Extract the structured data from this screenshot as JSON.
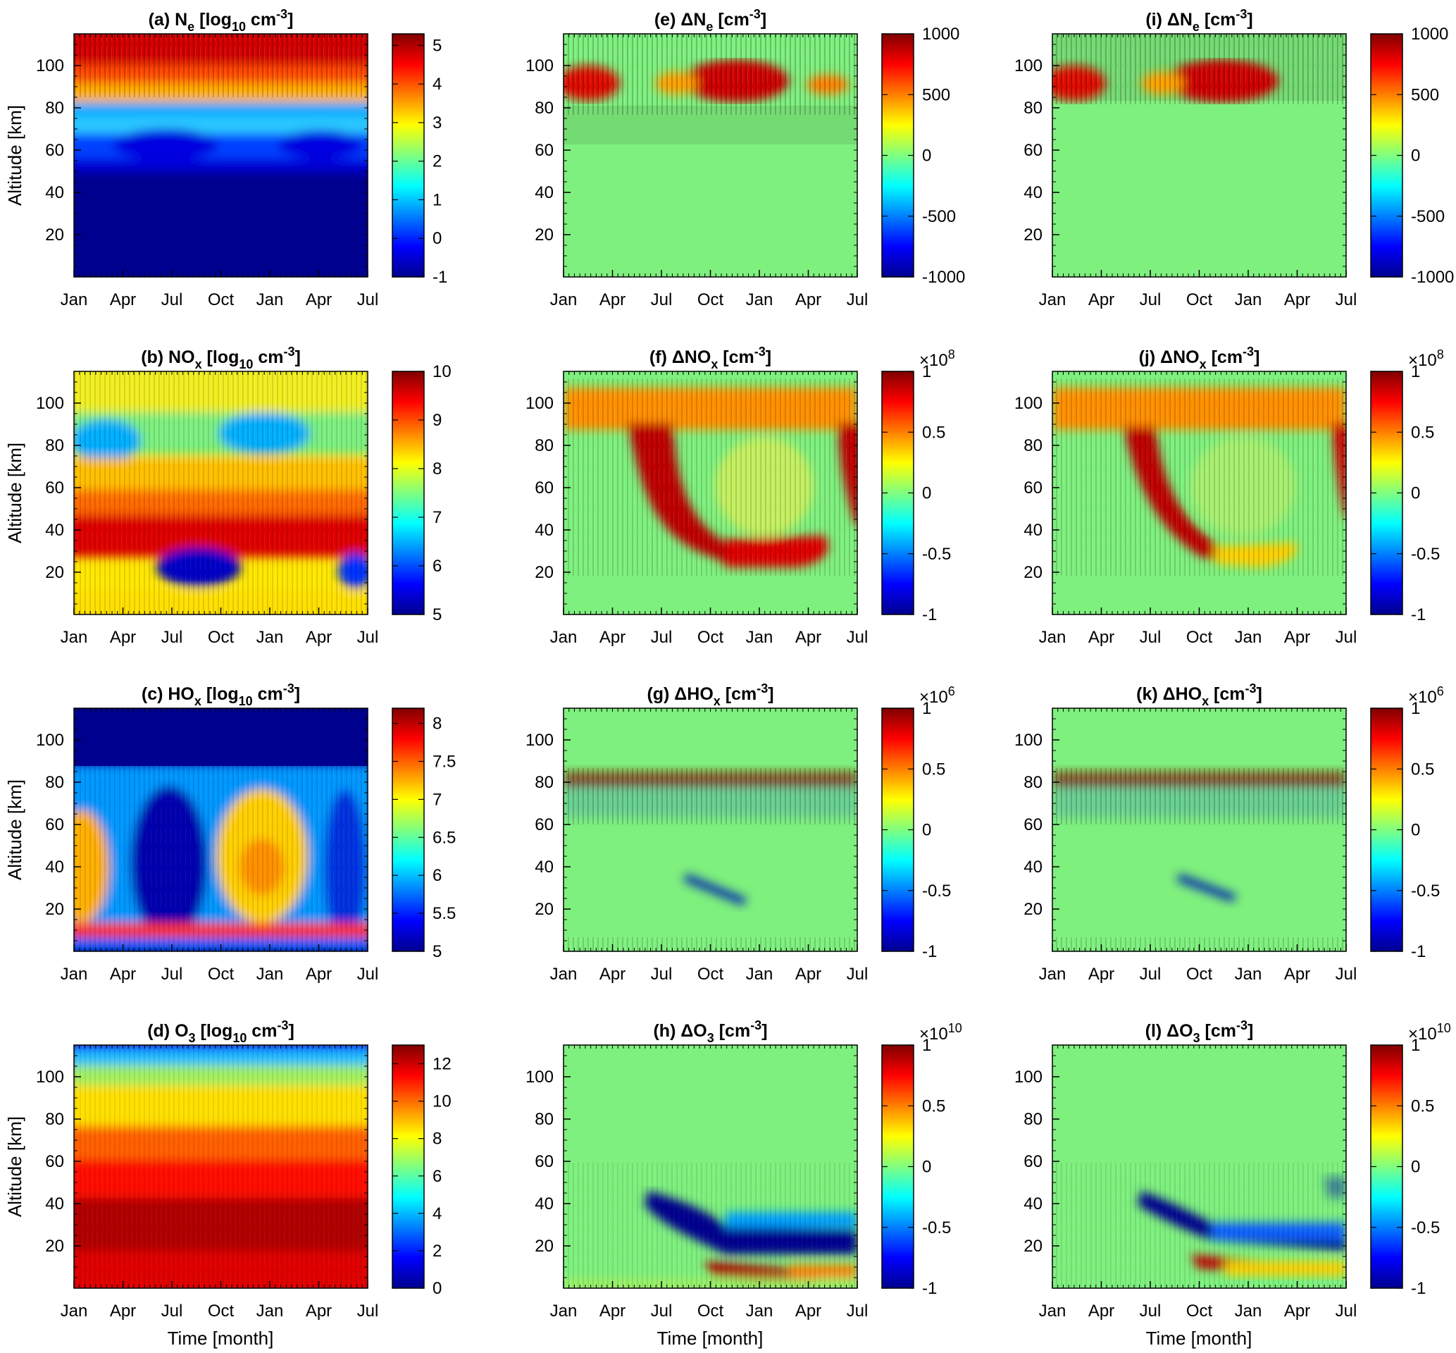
{
  "figure": {
    "x_label": "Time [month]",
    "y_label": "Altitude [km]"
  },
  "chart_data": [
    {
      "id": "a",
      "type": "heatmap",
      "title_prefix": "(a)",
      "species": "N",
      "species_sub": "e",
      "delta": false,
      "unit_pre": "[log",
      "unit_sub": "10",
      "unit_mid": " cm",
      "unit_sup": "-3",
      "unit_post": "]",
      "x_ticks": [
        "Jan",
        "Apr",
        "Jul",
        "Oct",
        "Jan",
        "Apr",
        "Jul"
      ],
      "y_ticks": [
        20,
        40,
        60,
        80,
        100
      ],
      "ylim": [
        0,
        115
      ],
      "colorbar_ticks": [
        "5",
        "4",
        "3",
        "2",
        "1",
        "0",
        "-1"
      ],
      "clim": [
        -1,
        5.3
      ],
      "colormap": "jet",
      "exponent": ""
    },
    {
      "id": "b",
      "type": "heatmap",
      "title_prefix": "(b)",
      "species": "NO",
      "species_sub": "x",
      "delta": false,
      "unit_pre": "[log",
      "unit_sub": "10",
      "unit_mid": " cm",
      "unit_sup": "-3",
      "unit_post": "]",
      "x_ticks": [
        "Jan",
        "Apr",
        "Jul",
        "Oct",
        "Jan",
        "Apr",
        "Jul"
      ],
      "y_ticks": [
        20,
        40,
        60,
        80,
        100
      ],
      "ylim": [
        0,
        115
      ],
      "colorbar_ticks": [
        "10",
        "9",
        "8",
        "7",
        "6",
        "5"
      ],
      "clim": [
        5,
        10
      ],
      "colormap": "jet",
      "exponent": ""
    },
    {
      "id": "c",
      "type": "heatmap",
      "title_prefix": "(c)",
      "species": "HO",
      "species_sub": "x",
      "delta": false,
      "unit_pre": "[log",
      "unit_sub": "10",
      "unit_mid": " cm",
      "unit_sup": "-3",
      "unit_post": "]",
      "x_ticks": [
        "Jan",
        "Apr",
        "Jul",
        "Oct",
        "Jan",
        "Apr",
        "Jul"
      ],
      "y_ticks": [
        20,
        40,
        60,
        80,
        100
      ],
      "ylim": [
        0,
        115
      ],
      "colorbar_ticks": [
        "8",
        "7.5",
        "7",
        "6.5",
        "6",
        "5.5",
        "5"
      ],
      "clim": [
        5,
        8.2
      ],
      "colormap": "jet",
      "exponent": ""
    },
    {
      "id": "d",
      "type": "heatmap",
      "title_prefix": "(d)",
      "species": "O",
      "species_sub": "3",
      "delta": false,
      "unit_pre": "[log",
      "unit_sub": "10",
      "unit_mid": " cm",
      "unit_sup": "-3",
      "unit_post": "]",
      "x_ticks": [
        "Jan",
        "Apr",
        "Jul",
        "Oct",
        "Jan",
        "Apr",
        "Jul"
      ],
      "y_ticks": [
        20,
        40,
        60,
        80,
        100
      ],
      "ylim": [
        0,
        115
      ],
      "colorbar_ticks": [
        "12",
        "10",
        "8",
        "6",
        "4",
        "2",
        "0"
      ],
      "clim": [
        0,
        13
      ],
      "colormap": "jet",
      "exponent": ""
    },
    {
      "id": "e",
      "type": "heatmap",
      "title_prefix": "(e)",
      "species": "N",
      "species_sub": "e",
      "delta": true,
      "unit_pre": "[cm",
      "unit_sub": "",
      "unit_mid": "",
      "unit_sup": "-3",
      "unit_post": "]",
      "x_ticks": [
        "Jan",
        "Apr",
        "Jul",
        "Oct",
        "Jan",
        "Apr",
        "Jul"
      ],
      "y_ticks": [
        20,
        40,
        60,
        80,
        100
      ],
      "ylim": [
        0,
        115
      ],
      "colorbar_ticks": [
        "1000",
        "500",
        "0",
        "-500",
        "-1000"
      ],
      "clim": [
        -1000,
        1000
      ],
      "colormap": "jet",
      "exponent": ""
    },
    {
      "id": "f",
      "type": "heatmap",
      "title_prefix": "(f)",
      "species": "NO",
      "species_sub": "x",
      "delta": true,
      "unit_pre": "[cm",
      "unit_sub": "",
      "unit_mid": "",
      "unit_sup": "-3",
      "unit_post": "]",
      "x_ticks": [
        "Jan",
        "Apr",
        "Jul",
        "Oct",
        "Jan",
        "Apr",
        "Jul"
      ],
      "y_ticks": [
        20,
        40,
        60,
        80,
        100
      ],
      "ylim": [
        0,
        115
      ],
      "colorbar_ticks": [
        "1",
        "0.5",
        "0",
        "-0.5",
        "-1"
      ],
      "clim": [
        -1,
        1
      ],
      "colormap": "jet",
      "exponent": "8"
    },
    {
      "id": "g",
      "type": "heatmap",
      "title_prefix": "(g)",
      "species": "HO",
      "species_sub": "x",
      "delta": true,
      "unit_pre": "[cm",
      "unit_sub": "",
      "unit_mid": "",
      "unit_sup": "-3",
      "unit_post": "]",
      "x_ticks": [
        "Jan",
        "Apr",
        "Jul",
        "Oct",
        "Jan",
        "Apr",
        "Jul"
      ],
      "y_ticks": [
        20,
        40,
        60,
        80,
        100
      ],
      "ylim": [
        0,
        115
      ],
      "colorbar_ticks": [
        "1",
        "0.5",
        "0",
        "-0.5",
        "-1"
      ],
      "clim": [
        -1,
        1
      ],
      "colormap": "jet",
      "exponent": "6"
    },
    {
      "id": "h",
      "type": "heatmap",
      "title_prefix": "(h)",
      "species": "O",
      "species_sub": "3",
      "delta": true,
      "unit_pre": "[cm",
      "unit_sub": "",
      "unit_mid": "",
      "unit_sup": "-3",
      "unit_post": "]",
      "x_ticks": [
        "Jan",
        "Apr",
        "Jul",
        "Oct",
        "Jan",
        "Apr",
        "Jul"
      ],
      "y_ticks": [
        20,
        40,
        60,
        80,
        100
      ],
      "ylim": [
        0,
        115
      ],
      "colorbar_ticks": [
        "1",
        "0.5",
        "0",
        "-0.5",
        "-1"
      ],
      "clim": [
        -1,
        1
      ],
      "colormap": "jet",
      "exponent": "10"
    },
    {
      "id": "i",
      "type": "heatmap",
      "title_prefix": "(i)",
      "species": "N",
      "species_sub": "e",
      "delta": true,
      "unit_pre": "[cm",
      "unit_sub": "",
      "unit_mid": "",
      "unit_sup": "-3",
      "unit_post": "]",
      "x_ticks": [
        "Jan",
        "Apr",
        "Jul",
        "Oct",
        "Jan",
        "Apr",
        "Jul"
      ],
      "y_ticks": [
        20,
        40,
        60,
        80,
        100
      ],
      "ylim": [
        0,
        115
      ],
      "colorbar_ticks": [
        "1000",
        "500",
        "0",
        "-500",
        "-1000"
      ],
      "clim": [
        -1000,
        1000
      ],
      "colormap": "jet",
      "exponent": ""
    },
    {
      "id": "j",
      "type": "heatmap",
      "title_prefix": "(j)",
      "species": "NO",
      "species_sub": "x",
      "delta": true,
      "unit_pre": "[cm",
      "unit_sub": "",
      "unit_mid": "",
      "unit_sup": "-3",
      "unit_post": "]",
      "x_ticks": [
        "Jan",
        "Apr",
        "Jul",
        "Oct",
        "Jan",
        "Apr",
        "Jul"
      ],
      "y_ticks": [
        20,
        40,
        60,
        80,
        100
      ],
      "ylim": [
        0,
        115
      ],
      "colorbar_ticks": [
        "1",
        "0.5",
        "0",
        "-0.5",
        "-1"
      ],
      "clim": [
        -1,
        1
      ],
      "colormap": "jet",
      "exponent": "8"
    },
    {
      "id": "k",
      "type": "heatmap",
      "title_prefix": "(k)",
      "species": "HO",
      "species_sub": "x",
      "delta": true,
      "unit_pre": "[cm",
      "unit_sub": "",
      "unit_mid": "",
      "unit_sup": "-3",
      "unit_post": "]",
      "x_ticks": [
        "Jan",
        "Apr",
        "Jul",
        "Oct",
        "Jan",
        "Apr",
        "Jul"
      ],
      "y_ticks": [
        20,
        40,
        60,
        80,
        100
      ],
      "ylim": [
        0,
        115
      ],
      "colorbar_ticks": [
        "1",
        "0.5",
        "0",
        "-0.5",
        "-1"
      ],
      "clim": [
        -1,
        1
      ],
      "colormap": "jet",
      "exponent": "6"
    },
    {
      "id": "l",
      "type": "heatmap",
      "title_prefix": "(l)",
      "species": "O",
      "species_sub": "3",
      "delta": true,
      "unit_pre": "[cm",
      "unit_sub": "",
      "unit_mid": "",
      "unit_sup": "-3",
      "unit_post": "]",
      "x_ticks": [
        "Jan",
        "Apr",
        "Jul",
        "Oct",
        "Jan",
        "Apr",
        "Jul"
      ],
      "y_ticks": [
        20,
        40,
        60,
        80,
        100
      ],
      "ylim": [
        0,
        115
      ],
      "colorbar_ticks": [
        "1",
        "0.5",
        "0",
        "-0.5",
        "-1"
      ],
      "clim": [
        -1,
        1
      ],
      "colormap": "jet",
      "exponent": "10"
    }
  ]
}
